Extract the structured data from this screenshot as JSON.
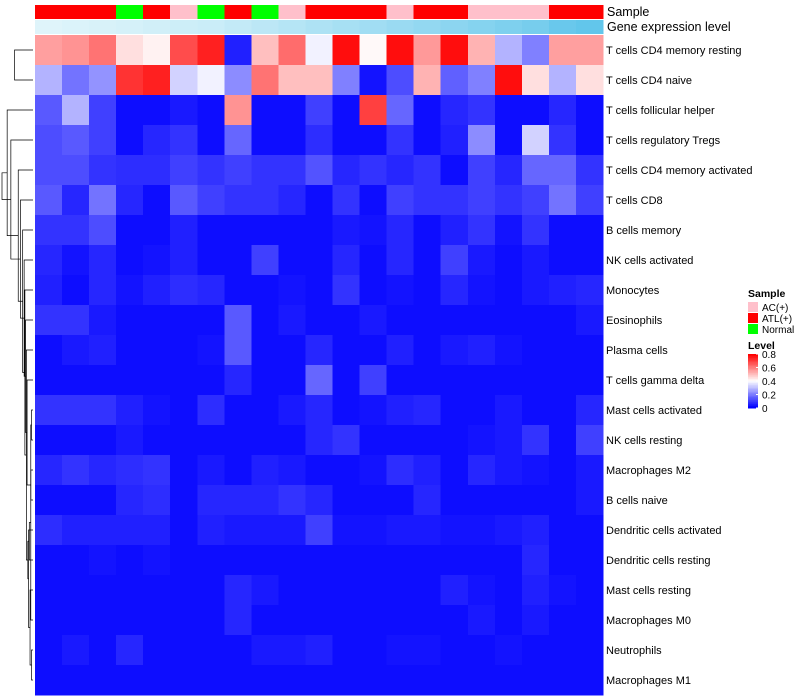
{
  "chart_data": {
    "type": "heatmap",
    "annotations": [
      {
        "name": "Sample",
        "type": "categorical"
      },
      {
        "name": "Gene expression level",
        "type": "continuous"
      }
    ],
    "sample_groups": [
      "ATL(+)",
      "ATL(+)",
      "ATL(+)",
      "Normal",
      "ATL(+)",
      "AC(+)",
      "Normal",
      "ATL(+)",
      "Normal",
      "AC(+)",
      "ATL(+)",
      "ATL(+)",
      "ATL(+)",
      "AC(+)",
      "ATL(+)",
      "ATL(+)",
      "AC(+)",
      "AC(+)",
      "AC(+)",
      "ATL(+)",
      "ATL(+)"
    ],
    "gene_expression_level": [
      0.05,
      0.08,
      0.1,
      0.12,
      0.15,
      0.18,
      0.2,
      0.25,
      0.3,
      0.35,
      0.4,
      0.45,
      0.5,
      0.55,
      0.6,
      0.65,
      0.7,
      0.75,
      0.8,
      0.9,
      0.95
    ],
    "rows": [
      "T cells CD4 memory resting",
      "T cells CD4 naive",
      "T cells follicular helper",
      "T cells regulatory  Tregs",
      "T cells CD4 memory activated",
      "T cells CD8",
      "B cells memory",
      "NK cells activated",
      "Monocytes",
      "Eosinophils",
      "Plasma cells",
      "T cells gamma delta",
      "Mast cells activated",
      "NK cells resting",
      "Macrophages M2",
      "B cells naive",
      "Dendritic cells activated",
      "Dendritic cells resting",
      "Mast cells resting",
      "Macrophages M0",
      "Neutrophils",
      "Macrophages M1"
    ],
    "values": [
      [
        0.55,
        0.57,
        0.62,
        0.45,
        0.42,
        0.68,
        0.75,
        0.05,
        0.5,
        0.63,
        0.38,
        0.78,
        0.41,
        0.78,
        0.56,
        0.78,
        0.52,
        0.28,
        0.2,
        0.55,
        0.55
      ],
      [
        0.28,
        0.18,
        0.23,
        0.72,
        0.75,
        0.33,
        0.38,
        0.22,
        0.62,
        0.5,
        0.5,
        0.2,
        0.03,
        0.12,
        0.52,
        0.15,
        0.2,
        0.78,
        0.45,
        0.28,
        0.45
      ],
      [
        0.14,
        0.28,
        0.1,
        0.02,
        0.02,
        0.04,
        0.02,
        0.57,
        0.02,
        0.02,
        0.1,
        0.02,
        0.7,
        0.16,
        0.02,
        0.06,
        0.08,
        0.02,
        0.02,
        0.06,
        0.02
      ],
      [
        0.12,
        0.14,
        0.1,
        0.02,
        0.06,
        0.08,
        0.02,
        0.16,
        0.02,
        0.02,
        0.07,
        0.02,
        0.02,
        0.08,
        0.02,
        0.05,
        0.22,
        0.02,
        0.33,
        0.08,
        0.02
      ],
      [
        0.12,
        0.12,
        0.08,
        0.07,
        0.07,
        0.1,
        0.08,
        0.1,
        0.08,
        0.08,
        0.13,
        0.06,
        0.08,
        0.06,
        0.08,
        0.02,
        0.1,
        0.06,
        0.16,
        0.16,
        0.08
      ],
      [
        0.14,
        0.06,
        0.18,
        0.06,
        0.02,
        0.14,
        0.1,
        0.08,
        0.08,
        0.06,
        0.02,
        0.08,
        0.02,
        0.1,
        0.08,
        0.08,
        0.1,
        0.08,
        0.1,
        0.18,
        0.1
      ],
      [
        0.08,
        0.08,
        0.12,
        0.02,
        0.02,
        0.05,
        0.02,
        0.02,
        0.02,
        0.02,
        0.02,
        0.04,
        0.03,
        0.06,
        0.02,
        0.05,
        0.08,
        0.03,
        0.08,
        0.02,
        0.02
      ],
      [
        0.06,
        0.03,
        0.06,
        0.02,
        0.03,
        0.05,
        0.02,
        0.02,
        0.1,
        0.02,
        0.02,
        0.06,
        0.02,
        0.06,
        0.02,
        0.1,
        0.04,
        0.02,
        0.04,
        0.02,
        0.02
      ],
      [
        0.05,
        0.02,
        0.06,
        0.03,
        0.05,
        0.07,
        0.06,
        0.02,
        0.02,
        0.03,
        0.02,
        0.08,
        0.02,
        0.03,
        0.02,
        0.06,
        0.03,
        0.02,
        0.04,
        0.05,
        0.06
      ],
      [
        0.08,
        0.08,
        0.04,
        0.02,
        0.02,
        0.02,
        0.02,
        0.14,
        0.02,
        0.04,
        0.02,
        0.02,
        0.04,
        0.02,
        0.02,
        0.02,
        0.02,
        0.02,
        0.02,
        0.02,
        0.04
      ],
      [
        0.02,
        0.04,
        0.05,
        0.02,
        0.02,
        0.02,
        0.03,
        0.14,
        0.02,
        0.02,
        0.06,
        0.02,
        0.02,
        0.05,
        0.02,
        0.04,
        0.05,
        0.03,
        0.02,
        0.02,
        0.02
      ],
      [
        0.02,
        0.02,
        0.02,
        0.02,
        0.02,
        0.02,
        0.02,
        0.06,
        0.02,
        0.02,
        0.16,
        0.02,
        0.1,
        0.02,
        0.02,
        0.02,
        0.02,
        0.02,
        0.02,
        0.02,
        0.02
      ],
      [
        0.08,
        0.08,
        0.08,
        0.05,
        0.03,
        0.02,
        0.07,
        0.02,
        0.02,
        0.04,
        0.06,
        0.02,
        0.03,
        0.05,
        0.06,
        0.02,
        0.02,
        0.04,
        0.02,
        0.02,
        0.06
      ],
      [
        0.02,
        0.02,
        0.02,
        0.04,
        0.02,
        0.02,
        0.02,
        0.02,
        0.02,
        0.02,
        0.06,
        0.08,
        0.02,
        0.02,
        0.02,
        0.02,
        0.03,
        0.04,
        0.08,
        0.02,
        0.1
      ],
      [
        0.06,
        0.08,
        0.06,
        0.07,
        0.08,
        0.02,
        0.04,
        0.02,
        0.05,
        0.04,
        0.02,
        0.02,
        0.03,
        0.07,
        0.05,
        0.02,
        0.06,
        0.04,
        0.03,
        0.02,
        0.04
      ],
      [
        0.02,
        0.02,
        0.02,
        0.06,
        0.07,
        0.02,
        0.06,
        0.06,
        0.06,
        0.08,
        0.06,
        0.02,
        0.02,
        0.02,
        0.06,
        0.02,
        0.02,
        0.02,
        0.02,
        0.02,
        0.04
      ],
      [
        0.07,
        0.05,
        0.05,
        0.05,
        0.05,
        0.02,
        0.05,
        0.04,
        0.04,
        0.04,
        0.1,
        0.03,
        0.03,
        0.04,
        0.04,
        0.03,
        0.03,
        0.04,
        0.05,
        0.02,
        0.02
      ],
      [
        0.02,
        0.02,
        0.03,
        0.02,
        0.03,
        0.02,
        0.02,
        0.02,
        0.02,
        0.02,
        0.02,
        0.02,
        0.02,
        0.02,
        0.02,
        0.02,
        0.02,
        0.02,
        0.06,
        0.02,
        0.02
      ],
      [
        0.02,
        0.02,
        0.02,
        0.02,
        0.02,
        0.02,
        0.02,
        0.06,
        0.04,
        0.02,
        0.02,
        0.02,
        0.02,
        0.02,
        0.02,
        0.05,
        0.03,
        0.02,
        0.05,
        0.03,
        0.02
      ],
      [
        0.02,
        0.02,
        0.02,
        0.02,
        0.02,
        0.02,
        0.02,
        0.06,
        0.02,
        0.02,
        0.02,
        0.02,
        0.02,
        0.02,
        0.02,
        0.02,
        0.04,
        0.02,
        0.04,
        0.02,
        0.02
      ],
      [
        0.02,
        0.04,
        0.02,
        0.06,
        0.02,
        0.02,
        0.02,
        0.02,
        0.04,
        0.04,
        0.05,
        0.02,
        0.02,
        0.03,
        0.03,
        0.02,
        0.02,
        0.03,
        0.02,
        0.02,
        0.02
      ],
      [
        0.02,
        0.02,
        0.02,
        0.02,
        0.02,
        0.02,
        0.02,
        0.02,
        0.02,
        0.02,
        0.02,
        0.02,
        0.02,
        0.02,
        0.02,
        0.02,
        0.02,
        0.02,
        0.02,
        0.02,
        0.02
      ]
    ],
    "row_dendrogram": [
      [
        12,
        13
      ],
      [
        21,
        20
      ],
      [
        19,
        22
      ],
      [
        18,
        23
      ],
      [
        17,
        24
      ],
      [
        16,
        25
      ],
      [
        14,
        15
      ],
      [
        26,
        27
      ],
      [
        11,
        28
      ],
      [
        10,
        29
      ],
      [
        9,
        30
      ],
      [
        8,
        31
      ],
      [
        7,
        32
      ],
      [
        6,
        33
      ],
      [
        5,
        34
      ],
      [
        4,
        35
      ],
      [
        3,
        36
      ],
      [
        2,
        37
      ],
      [
        0,
        1
      ]
    ],
    "dendrogram_heights": [
      0.2,
      0.2,
      0.3,
      0.4,
      0.5,
      0.6,
      0.3,
      0.7,
      0.8,
      0.9,
      1.0,
      1.1,
      1.2,
      1.4,
      1.7,
      2.0,
      3.0,
      3.5,
      2.5
    ],
    "dendrogram_root": [
      38,
      39
    ],
    "dendrogram_root_height": 4.2,
    "legend": {
      "sample_title": "Sample",
      "sample_entries": [
        {
          "label": "AC(+)",
          "color": "#ffc0cb"
        },
        {
          "label": "ATL(+)",
          "color": "#ff0000"
        },
        {
          "label": "Normal",
          "color": "#00ff00"
        }
      ],
      "level_title": "Level",
      "level_ticks": [
        0.8,
        0.6,
        0.4,
        0.2,
        0
      ],
      "level_tick_labels": [
        "0.8",
        "0.6",
        "0.4",
        "0.2",
        "0"
      ]
    },
    "color_scale": {
      "min": 0,
      "mid": 0.4,
      "max": 0.8,
      "low_color": "#0000ff",
      "mid_color": "#ffffff",
      "high_color": "#ff0000"
    },
    "gene_scale": {
      "low_color": "#e6f7fb",
      "high_color": "#5bc3ea"
    }
  }
}
